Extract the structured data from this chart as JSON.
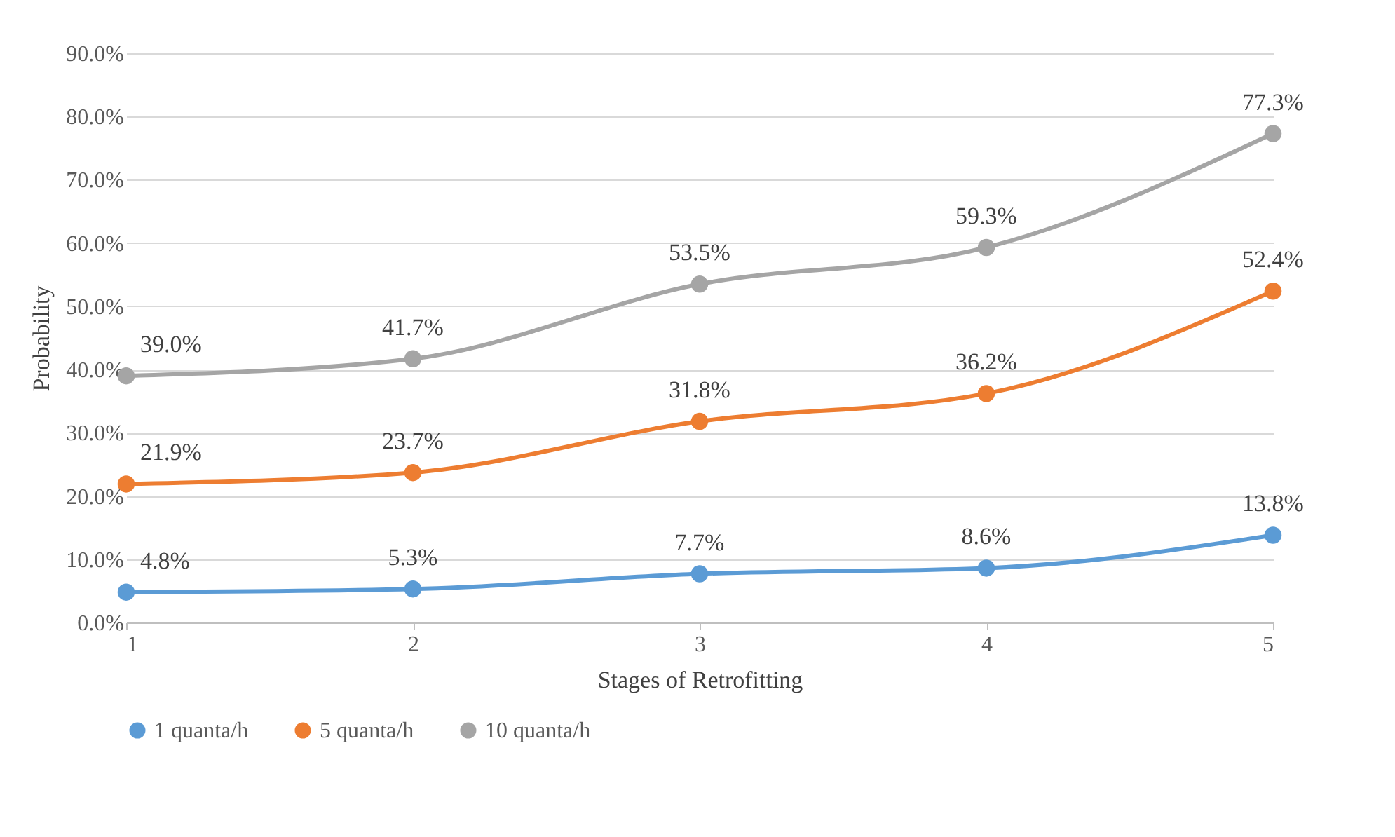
{
  "chart_data": {
    "type": "line",
    "xlabel": "Stages of Retrofitting",
    "ylabel": "Probability",
    "x": [
      1,
      2,
      3,
      4,
      5
    ],
    "xlim": [
      1,
      5
    ],
    "xticks": [
      1,
      2,
      3,
      4,
      5
    ],
    "ylim": [
      0,
      90
    ],
    "yticks": [
      {
        "value": 0,
        "label": "0.0%"
      },
      {
        "value": 10,
        "label": "10.0%"
      },
      {
        "value": 20,
        "label": "20.0%"
      },
      {
        "value": 30,
        "label": "30.0%"
      },
      {
        "value": 40,
        "label": "40.0%"
      },
      {
        "value": 50,
        "label": "50.0%"
      },
      {
        "value": 60,
        "label": "60.0%"
      },
      {
        "value": 70,
        "label": "70.0%"
      },
      {
        "value": 80,
        "label": "80.0%"
      },
      {
        "value": 90,
        "label": "90.0%"
      }
    ],
    "series": [
      {
        "name": "1 quanta/h",
        "color": "#5b9bd5",
        "values": [
          4.8,
          5.3,
          7.7,
          8.6,
          13.8
        ],
        "value_labels": [
          "4.8%",
          "5.3%",
          "7.7%",
          "8.6%",
          "13.8%"
        ]
      },
      {
        "name": "5 quanta/h",
        "color": "#ed7d31",
        "values": [
          21.9,
          23.7,
          31.8,
          36.2,
          52.4
        ],
        "value_labels": [
          "21.9%",
          "23.7%",
          "31.8%",
          "36.2%",
          "52.4%"
        ]
      },
      {
        "name": "10 quanta/h",
        "color": "#a5a5a5",
        "values": [
          39.0,
          41.7,
          53.5,
          59.3,
          77.3
        ],
        "value_labels": [
          "39.0%",
          "41.7%",
          "53.5%",
          "59.3%",
          "77.3%"
        ]
      }
    ],
    "grid": "y",
    "legend": "bottom",
    "marker": "circle",
    "line_style": "solid"
  }
}
